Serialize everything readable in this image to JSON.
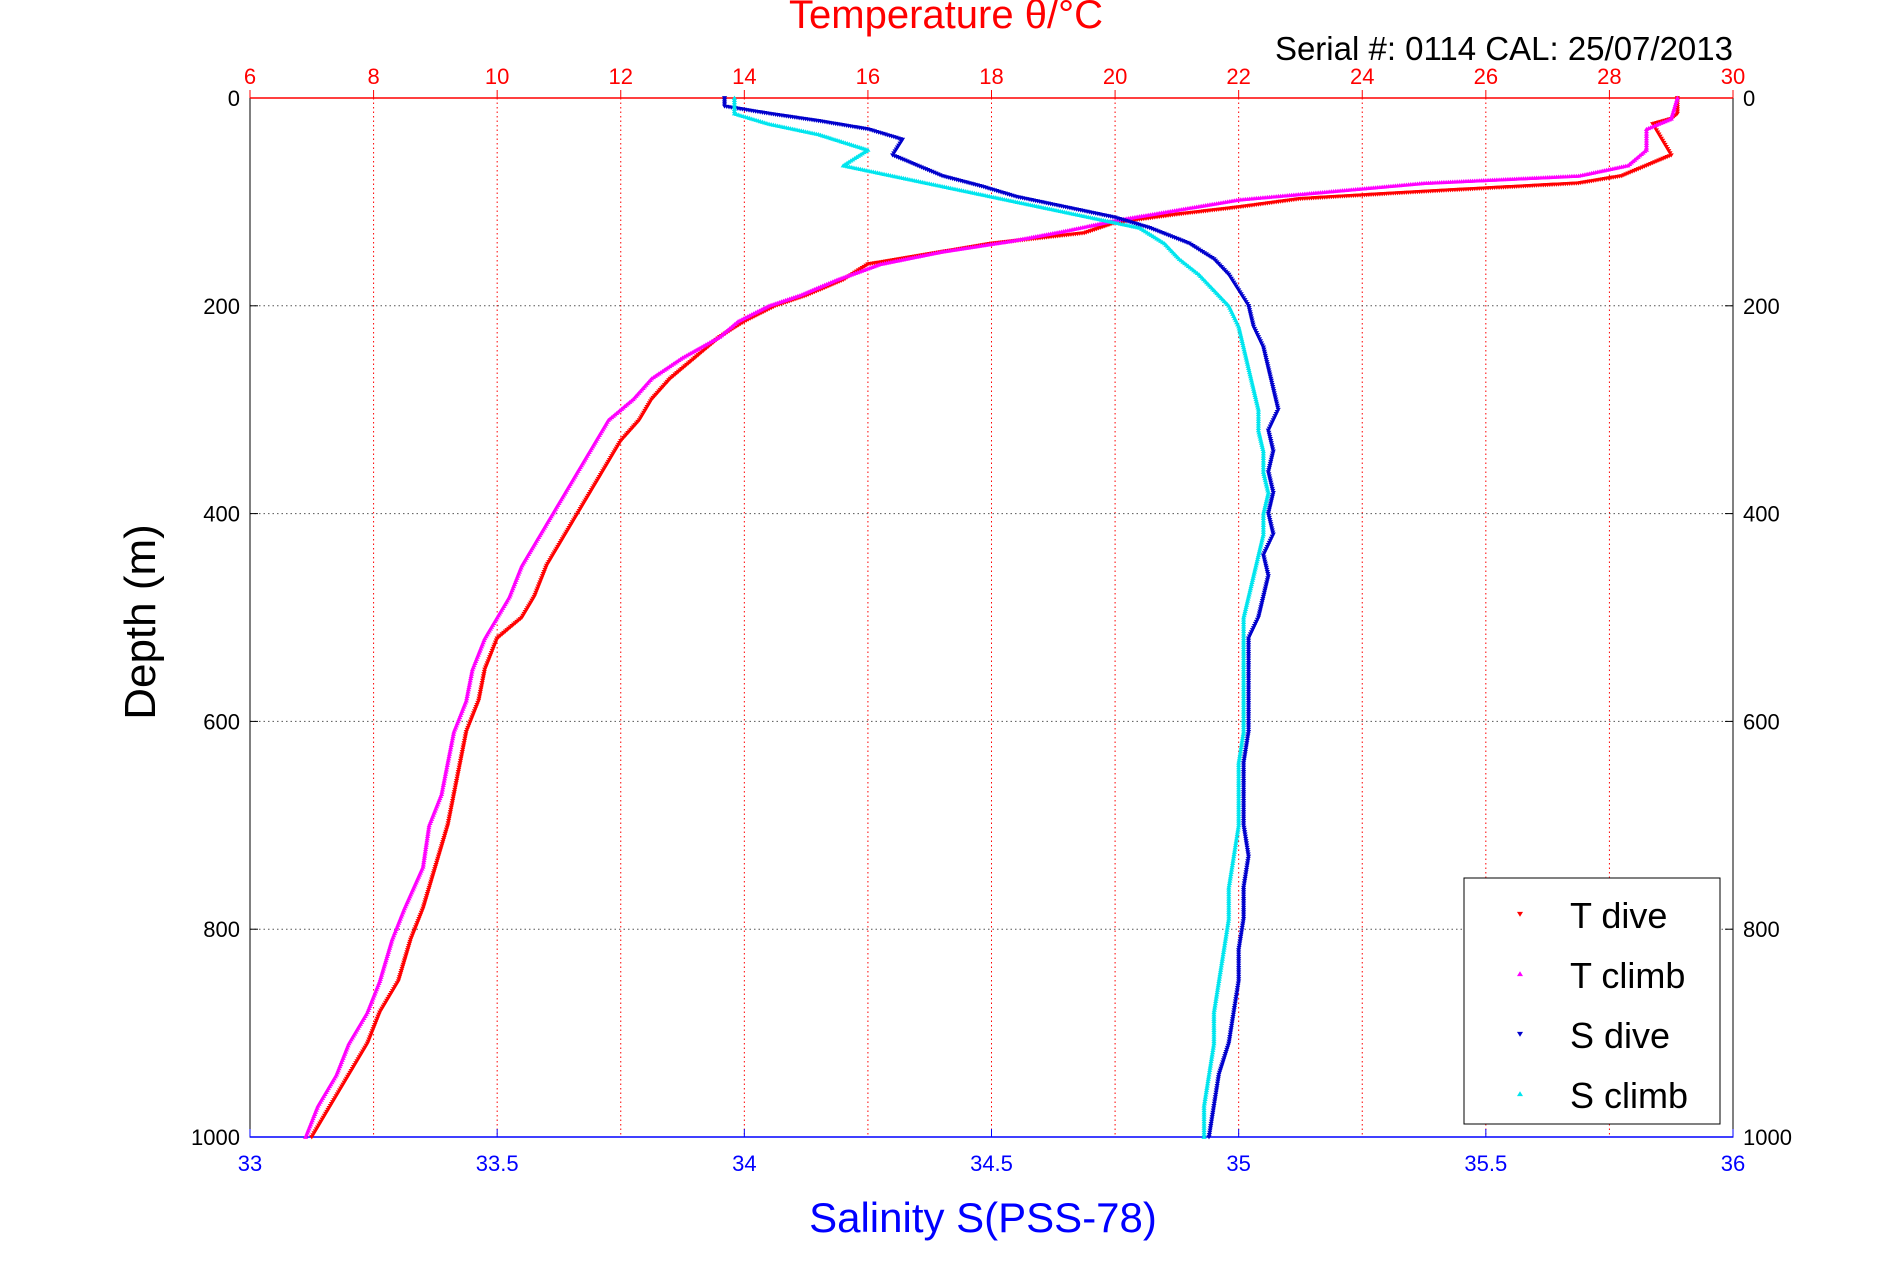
{
  "chart_data": {
    "type": "scatter",
    "title": "Temperature θ/°C",
    "subtitle": "Serial #: 0114  CAL: 25/07/2013",
    "xlabel": "Salinity S(PSS-78)",
    "ylabel": "Depth (m)",
    "x_salinity": {
      "range": [
        33,
        36
      ],
      "ticks": [
        "33",
        "33.5",
        "34",
        "34.5",
        "35",
        "35.5",
        "36"
      ]
    },
    "x_temperature": {
      "range": [
        6,
        30
      ],
      "ticks": [
        "6",
        "8",
        "10",
        "12",
        "14",
        "16",
        "18",
        "20",
        "22",
        "24",
        "26",
        "28",
        "30"
      ]
    },
    "y_depth": {
      "range": [
        0,
        1000
      ],
      "inverted": true,
      "ticks": [
        "0",
        "200",
        "400",
        "600",
        "800",
        "1000"
      ]
    },
    "grid": true,
    "legend": {
      "placement": "bottom-right",
      "items": [
        "T dive",
        "T climb",
        "S dive",
        "S climb"
      ]
    },
    "colors": {
      "title": "#ff0000",
      "temperature_axis": "#ff0000",
      "salinity_axis": "#0000ff",
      "t_dive": "#ff0000",
      "t_climb": "#ff00ff",
      "s_dive": "#0000cc",
      "s_climb": "#00e5ee"
    },
    "series": [
      {
        "name": "T dive",
        "axis": "temperature",
        "marker": "triangle-down",
        "points": [
          [
            29.1,
            0
          ],
          [
            29.1,
            15
          ],
          [
            29.0,
            20
          ],
          [
            28.7,
            25
          ],
          [
            28.8,
            35
          ],
          [
            28.9,
            45
          ],
          [
            29.0,
            55
          ],
          [
            28.6,
            65
          ],
          [
            28.2,
            75
          ],
          [
            27.5,
            82
          ],
          [
            25.0,
            90
          ],
          [
            23.0,
            97
          ],
          [
            22.0,
            105
          ],
          [
            21.0,
            112
          ],
          [
            20.0,
            120
          ],
          [
            19.5,
            130
          ],
          [
            18.0,
            140
          ],
          [
            17.0,
            150
          ],
          [
            16.0,
            160
          ],
          [
            15.6,
            175
          ],
          [
            15.0,
            190
          ],
          [
            14.5,
            200
          ],
          [
            14.0,
            215
          ],
          [
            13.6,
            230
          ],
          [
            13.2,
            250
          ],
          [
            12.8,
            270
          ],
          [
            12.5,
            290
          ],
          [
            12.3,
            310
          ],
          [
            12.0,
            330
          ],
          [
            11.8,
            350
          ],
          [
            11.6,
            370
          ],
          [
            11.4,
            390
          ],
          [
            11.2,
            410
          ],
          [
            11.0,
            430
          ],
          [
            10.8,
            450
          ],
          [
            10.6,
            480
          ],
          [
            10.4,
            500
          ],
          [
            10.0,
            520
          ],
          [
            9.8,
            550
          ],
          [
            9.7,
            580
          ],
          [
            9.5,
            610
          ],
          [
            9.4,
            640
          ],
          [
            9.3,
            670
          ],
          [
            9.2,
            700
          ],
          [
            9.0,
            740
          ],
          [
            8.8,
            780
          ],
          [
            8.6,
            810
          ],
          [
            8.4,
            850
          ],
          [
            8.1,
            880
          ],
          [
            7.9,
            910
          ],
          [
            7.6,
            940
          ],
          [
            7.3,
            970
          ],
          [
            7.0,
            1000
          ]
        ]
      },
      {
        "name": "T climb",
        "axis": "temperature",
        "marker": "triangle-up",
        "points": [
          [
            29.1,
            0
          ],
          [
            29.0,
            20
          ],
          [
            28.6,
            30
          ],
          [
            28.6,
            50
          ],
          [
            28.3,
            65
          ],
          [
            27.5,
            75
          ],
          [
            25.0,
            82
          ],
          [
            23.5,
            90
          ],
          [
            22.0,
            98
          ],
          [
            21.0,
            108
          ],
          [
            20.0,
            118
          ],
          [
            19.2,
            128
          ],
          [
            18.3,
            138
          ],
          [
            17.2,
            148
          ],
          [
            16.2,
            160
          ],
          [
            15.5,
            175
          ],
          [
            14.9,
            190
          ],
          [
            14.4,
            200
          ],
          [
            13.9,
            215
          ],
          [
            13.6,
            230
          ],
          [
            13.0,
            250
          ],
          [
            12.5,
            270
          ],
          [
            12.2,
            290
          ],
          [
            11.8,
            310
          ],
          [
            11.6,
            330
          ],
          [
            11.4,
            350
          ],
          [
            11.2,
            370
          ],
          [
            11.0,
            390
          ],
          [
            10.8,
            410
          ],
          [
            10.6,
            430
          ],
          [
            10.4,
            450
          ],
          [
            10.2,
            480
          ],
          [
            10.0,
            500
          ],
          [
            9.8,
            520
          ],
          [
            9.6,
            550
          ],
          [
            9.5,
            580
          ],
          [
            9.3,
            610
          ],
          [
            9.2,
            640
          ],
          [
            9.1,
            670
          ],
          [
            8.9,
            700
          ],
          [
            8.8,
            740
          ],
          [
            8.5,
            780
          ],
          [
            8.3,
            810
          ],
          [
            8.1,
            850
          ],
          [
            7.9,
            880
          ],
          [
            7.6,
            910
          ],
          [
            7.4,
            940
          ],
          [
            7.1,
            970
          ],
          [
            6.9,
            1000
          ]
        ]
      },
      {
        "name": "S dive",
        "axis": "salinity",
        "marker": "triangle-down",
        "points": [
          [
            33.96,
            0
          ],
          [
            33.96,
            8
          ],
          [
            34.05,
            15
          ],
          [
            34.15,
            22
          ],
          [
            34.25,
            30
          ],
          [
            34.32,
            40
          ],
          [
            34.3,
            55
          ],
          [
            34.35,
            65
          ],
          [
            34.4,
            75
          ],
          [
            34.48,
            85
          ],
          [
            34.55,
            95
          ],
          [
            34.65,
            105
          ],
          [
            34.75,
            115
          ],
          [
            34.82,
            125
          ],
          [
            34.9,
            140
          ],
          [
            34.95,
            155
          ],
          [
            34.98,
            170
          ],
          [
            35.0,
            185
          ],
          [
            35.02,
            200
          ],
          [
            35.03,
            220
          ],
          [
            35.05,
            240
          ],
          [
            35.06,
            260
          ],
          [
            35.07,
            280
          ],
          [
            35.08,
            300
          ],
          [
            35.06,
            320
          ],
          [
            35.07,
            340
          ],
          [
            35.06,
            360
          ],
          [
            35.07,
            380
          ],
          [
            35.06,
            400
          ],
          [
            35.07,
            420
          ],
          [
            35.05,
            440
          ],
          [
            35.06,
            460
          ],
          [
            35.05,
            480
          ],
          [
            35.04,
            500
          ],
          [
            35.02,
            520
          ],
          [
            35.02,
            550
          ],
          [
            35.02,
            580
          ],
          [
            35.02,
            610
          ],
          [
            35.01,
            640
          ],
          [
            35.01,
            670
          ],
          [
            35.01,
            700
          ],
          [
            35.02,
            730
          ],
          [
            35.01,
            760
          ],
          [
            35.01,
            790
          ],
          [
            35.0,
            820
          ],
          [
            35.0,
            850
          ],
          [
            34.99,
            880
          ],
          [
            34.98,
            910
          ],
          [
            34.96,
            940
          ],
          [
            34.95,
            970
          ],
          [
            34.94,
            1000
          ]
        ]
      },
      {
        "name": "S climb",
        "axis": "salinity",
        "marker": "triangle-up",
        "points": [
          [
            33.98,
            0
          ],
          [
            33.98,
            15
          ],
          [
            34.05,
            25
          ],
          [
            34.15,
            35
          ],
          [
            34.25,
            50
          ],
          [
            34.2,
            65
          ],
          [
            34.3,
            75
          ],
          [
            34.4,
            85
          ],
          [
            34.5,
            95
          ],
          [
            34.6,
            105
          ],
          [
            34.7,
            115
          ],
          [
            34.8,
            125
          ],
          [
            34.85,
            140
          ],
          [
            34.88,
            155
          ],
          [
            34.92,
            170
          ],
          [
            34.95,
            185
          ],
          [
            34.98,
            200
          ],
          [
            35.0,
            220
          ],
          [
            35.01,
            240
          ],
          [
            35.02,
            260
          ],
          [
            35.03,
            280
          ],
          [
            35.04,
            300
          ],
          [
            35.04,
            320
          ],
          [
            35.05,
            340
          ],
          [
            35.05,
            360
          ],
          [
            35.06,
            380
          ],
          [
            35.05,
            400
          ],
          [
            35.05,
            420
          ],
          [
            35.04,
            440
          ],
          [
            35.03,
            460
          ],
          [
            35.02,
            480
          ],
          [
            35.01,
            500
          ],
          [
            35.01,
            520
          ],
          [
            35.01,
            550
          ],
          [
            35.01,
            580
          ],
          [
            35.01,
            610
          ],
          [
            35.0,
            640
          ],
          [
            35.0,
            670
          ],
          [
            35.0,
            700
          ],
          [
            34.99,
            730
          ],
          [
            34.98,
            760
          ],
          [
            34.98,
            790
          ],
          [
            34.97,
            820
          ],
          [
            34.96,
            850
          ],
          [
            34.95,
            880
          ],
          [
            34.95,
            910
          ],
          [
            34.94,
            940
          ],
          [
            34.93,
            970
          ],
          [
            34.93,
            1000
          ]
        ]
      }
    ]
  }
}
